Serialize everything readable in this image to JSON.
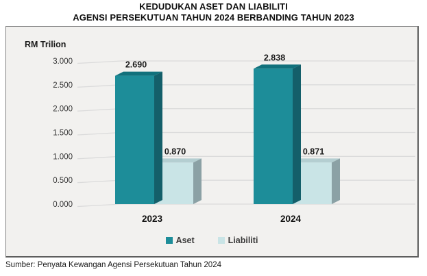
{
  "page": {
    "title_line1": "KEDUDUKAN ASET DAN LIABILITI",
    "title_line2": "AGENSI PERSEKUTUAN TAHUN 2024 BERBANDING TAHUN 2023",
    "source": "Sumber: Penyata Kewangan Agensi Persekutuan Tahun 2024"
  },
  "chart_data": {
    "type": "bar",
    "style": "3d-clustered",
    "title": "KEDUDUKAN ASET DAN LIABILITI AGENSI PERSEKUTUAN TAHUN 2024 BERBANDING TAHUN 2023",
    "ylabel": "RM Trilion",
    "xlabel": "",
    "categories": [
      "2023",
      "2024"
    ],
    "series": [
      {
        "name": "Aset",
        "values": [
          2.69,
          2.838
        ],
        "labels": [
          "2.690",
          "2.838"
        ],
        "color": "#1d8d99",
        "side_color": "#145f6a",
        "top_color": "#11717c"
      },
      {
        "name": "Liabiliti",
        "values": [
          0.87,
          0.871
        ],
        "labels": [
          "0.870",
          "0.871"
        ],
        "color": "#c9e4e6",
        "side_color": "#8ba1a5",
        "top_color": "#b4ced1"
      }
    ],
    "ylim": [
      0,
      3.0
    ],
    "yticks": [
      "3.000",
      "2.500",
      "2.000",
      "1.500",
      "1.000",
      "0.500",
      "0.000"
    ],
    "grid": true,
    "value_labels": true,
    "legend_position": "bottom",
    "colors": {
      "plot_background": "#f2f1ef",
      "gridline": "#dbdbdb",
      "tick_text": "#333333",
      "label_text": "#1a1a1a"
    }
  }
}
